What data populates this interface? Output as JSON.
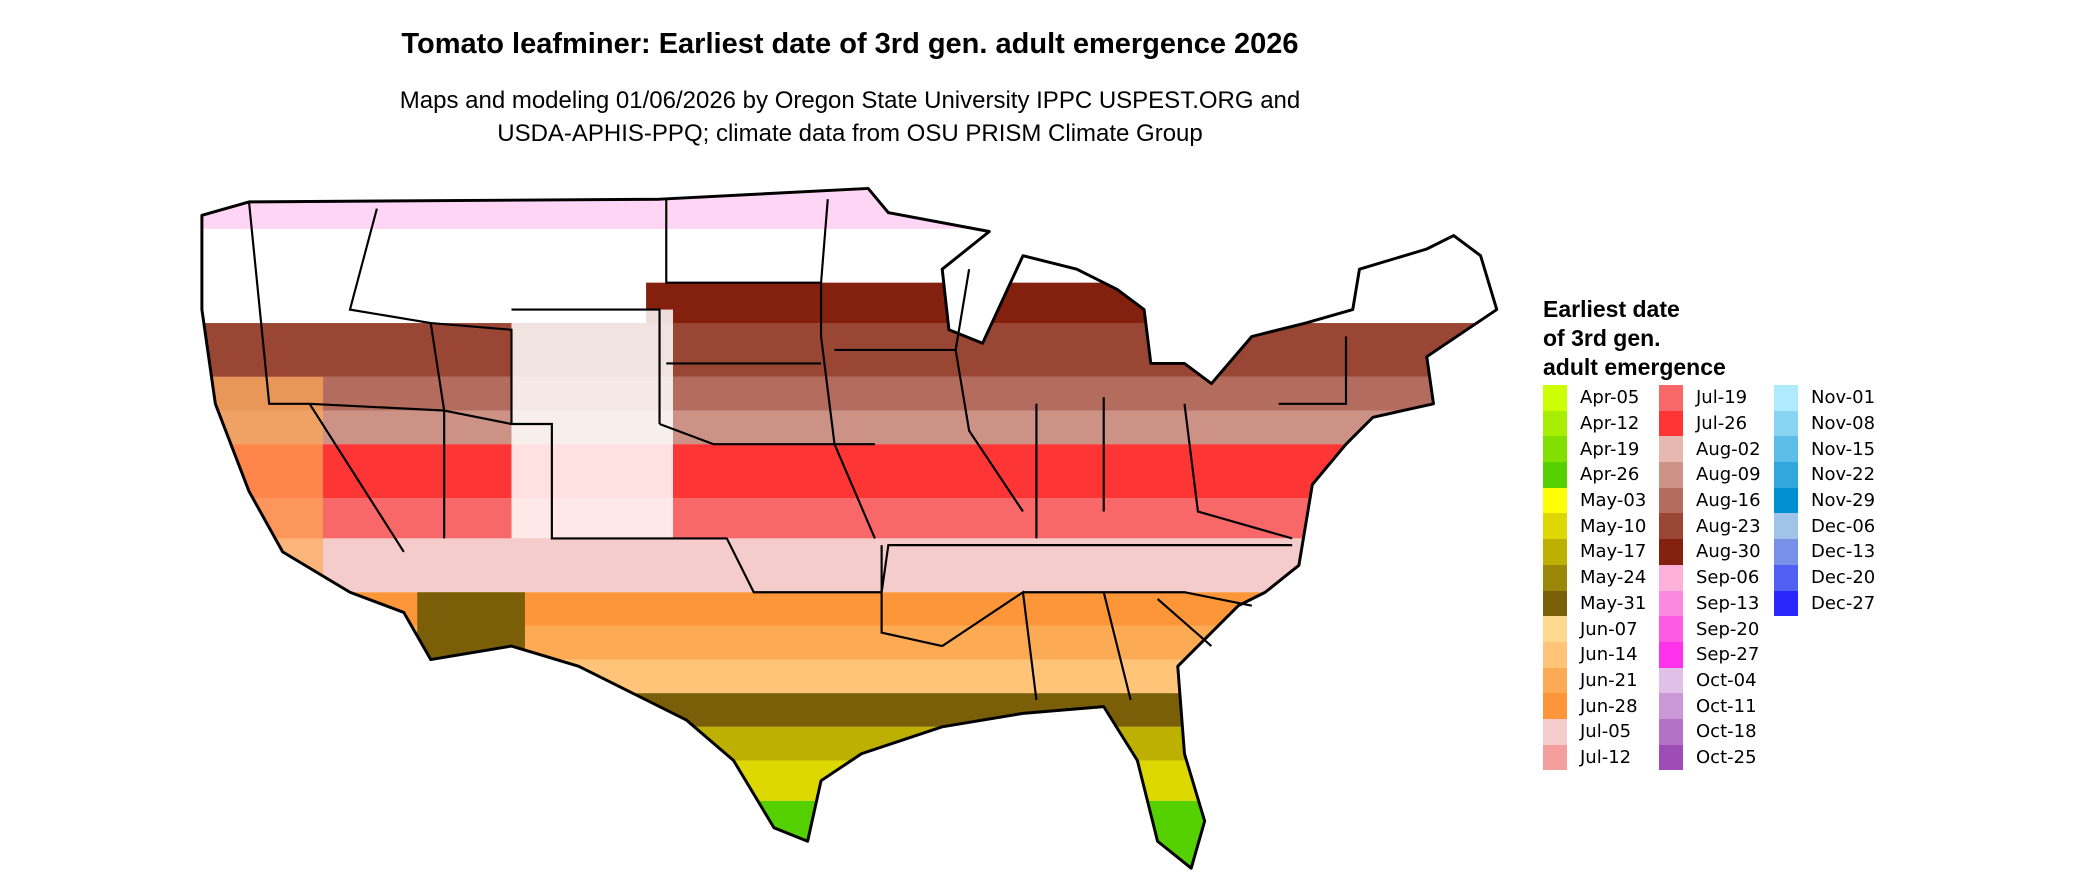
{
  "title": "Tomato leafminer: Earliest date of 3rd gen. adult emergence 2026",
  "subtitle_lines": [
    "Maps and modeling 01/06/2026 by Oregon State University IPPC USPEST.ORG and",
    "USDA-APHIS-PPQ; climate data from OSU PRISM Climate Group"
  ],
  "legend": {
    "title_lines": [
      "Earliest date",
      "of 3rd gen.",
      "adult emergence"
    ],
    "columns": [
      [
        {
          "label": "Apr-05",
          "color": "#CCFF00"
        },
        {
          "label": "Apr-12",
          "color": "#A8EE00"
        },
        {
          "label": "Apr-19",
          "color": "#80E000"
        },
        {
          "label": "Apr-26",
          "color": "#55D000"
        },
        {
          "label": "May-03",
          "color": "#FFFF00"
        },
        {
          "label": "May-10",
          "color": "#DDD800"
        },
        {
          "label": "May-17",
          "color": "#BDB000"
        },
        {
          "label": "May-24",
          "color": "#9A8608"
        },
        {
          "label": "May-31",
          "color": "#7A5E08"
        },
        {
          "label": "Jun-07",
          "color": "#FFD890"
        },
        {
          "label": "Jun-14",
          "color": "#FFC478"
        },
        {
          "label": "Jun-21",
          "color": "#FDAA55"
        },
        {
          "label": "Jun-28",
          "color": "#FD9638"
        },
        {
          "label": "Jul-05",
          "color": "#F5CCCC"
        },
        {
          "label": "Jul-12",
          "color": "#F59E9E"
        }
      ],
      [
        {
          "label": "Jul-19",
          "color": "#F86868"
        },
        {
          "label": "Jul-26",
          "color": "#FD3535"
        },
        {
          "label": "Aug-02",
          "color": "#E6B8B0"
        },
        {
          "label": "Aug-09",
          "color": "#CC9286"
        },
        {
          "label": "Aug-16",
          "color": "#B46C5E"
        },
        {
          "label": "Aug-23",
          "color": "#9A4634"
        },
        {
          "label": "Aug-30",
          "color": "#84200E"
        },
        {
          "label": "Sep-06",
          "color": "#FDB0D8"
        },
        {
          "label": "Sep-13",
          "color": "#FD88E0"
        },
        {
          "label": "Sep-20",
          "color": "#FD5CE2"
        },
        {
          "label": "Sep-27",
          "color": "#FD32EA"
        },
        {
          "label": "Oct-04",
          "color": "#E0C0E6"
        },
        {
          "label": "Oct-11",
          "color": "#CA98D6"
        },
        {
          "label": "Oct-18",
          "color": "#B472C6"
        },
        {
          "label": "Oct-25",
          "color": "#9E4CB6"
        }
      ],
      [
        {
          "label": "Nov-01",
          "color": "#B0EAFD"
        },
        {
          "label": "Nov-08",
          "color": "#88D4F2"
        },
        {
          "label": "Nov-15",
          "color": "#5CBEE8"
        },
        {
          "label": "Nov-22",
          "color": "#30A8DE"
        },
        {
          "label": "Nov-29",
          "color": "#0090D2"
        },
        {
          "label": "Dec-06",
          "color": "#A0C4E8"
        },
        {
          "label": "Dec-13",
          "color": "#7890E8"
        },
        {
          "label": "Dec-20",
          "color": "#5060F2"
        },
        {
          "label": "Dec-27",
          "color": "#2828FD"
        }
      ]
    ]
  },
  "map": {
    "region": "conterminous United States",
    "no_emergence_color": "#FFFFFF",
    "boundary_color": "#000000"
  }
}
